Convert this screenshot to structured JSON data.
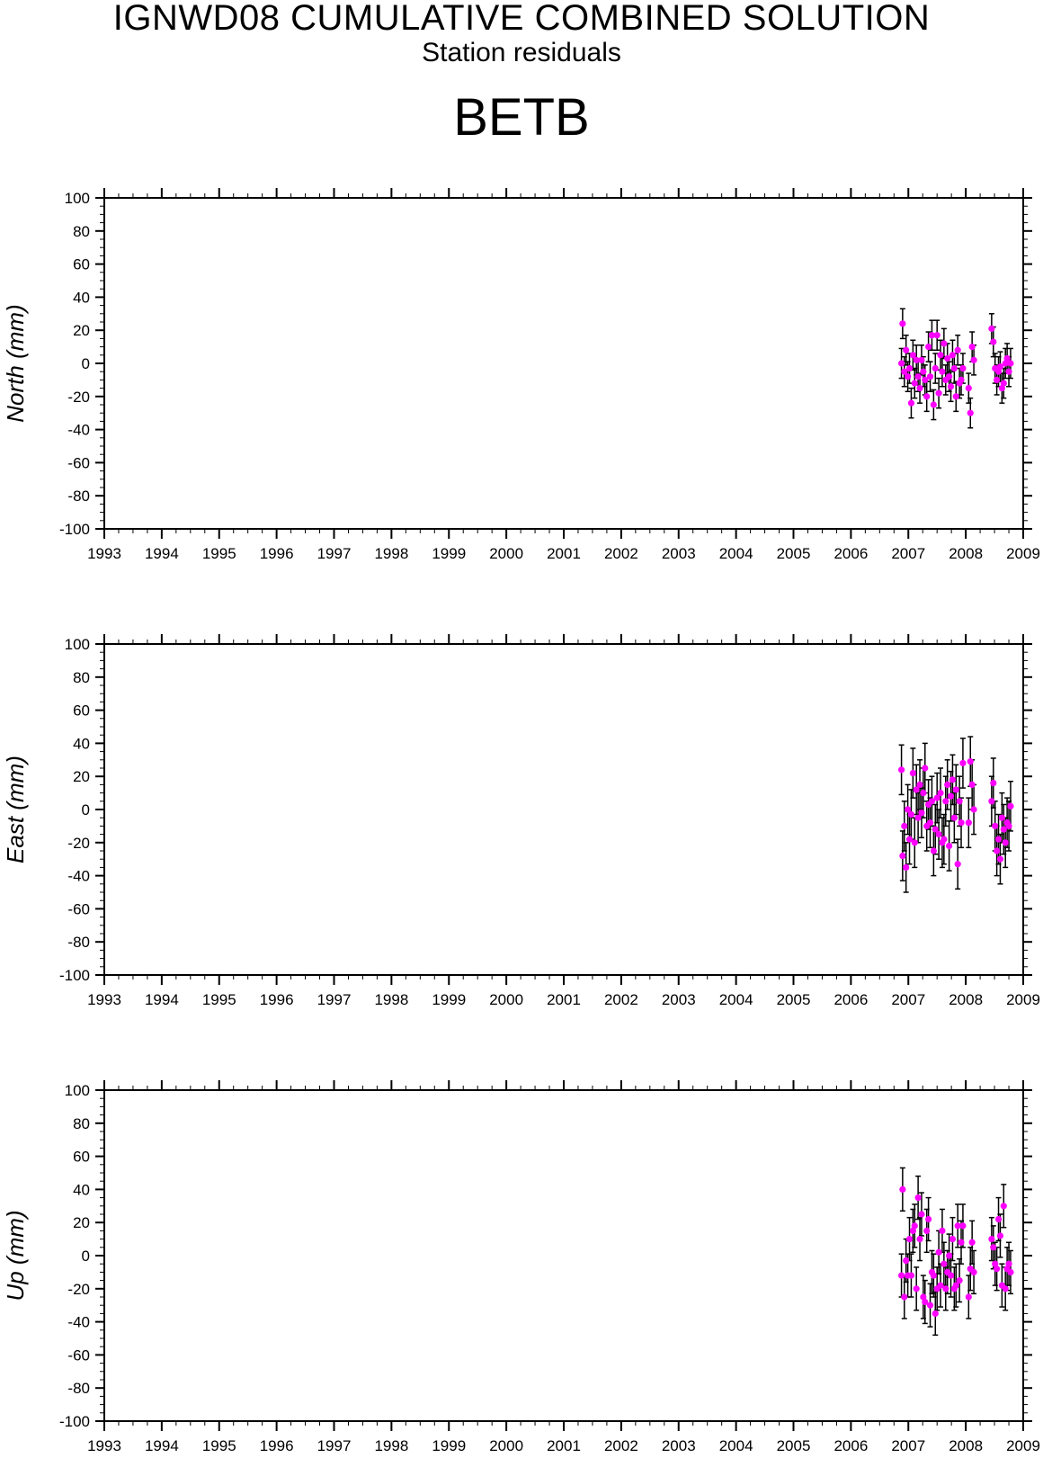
{
  "header": {
    "title": "IGNWD08 CUMULATIVE COMBINED SOLUTION",
    "subtitle": "Station residuals",
    "station": "BETB"
  },
  "colors": {
    "point": "#ff00ff",
    "errorbar": "#000000",
    "axis": "#000000"
  },
  "chart_data": [
    {
      "type": "scatter",
      "ylabel": "North (mm)",
      "xlim": [
        1993,
        2009
      ],
      "ylim": [
        -100,
        100
      ],
      "x_ticks": [
        "1993",
        "1994",
        "1995",
        "1996",
        "1997",
        "1998",
        "1999",
        "2000",
        "2001",
        "2002",
        "2003",
        "2004",
        "2005",
        "2006",
        "2007",
        "2008",
        "2009"
      ],
      "y_ticks": [
        "100",
        "80",
        "60",
        "40",
        "20",
        "0",
        "-20",
        "-40",
        "-60",
        "-80",
        "-100"
      ],
      "grid": false,
      "series": [
        {
          "x": [
            2006.88,
            2006.9,
            2006.93,
            2006.96,
            2006.99,
            2007.02,
            2007.05,
            2007.08,
            2007.11,
            2007.14,
            2007.17,
            2007.2,
            2007.23,
            2007.26,
            2007.29,
            2007.32,
            2007.35,
            2007.38,
            2007.41,
            2007.44,
            2007.47,
            2007.5,
            2007.53,
            2007.56,
            2007.59,
            2007.62,
            2007.65,
            2007.68,
            2007.71,
            2007.74,
            2007.77,
            2007.8,
            2007.83,
            2007.86,
            2007.89,
            2007.92,
            2007.95,
            2008.05,
            2008.08,
            2008.11,
            2008.14,
            2008.45,
            2008.48,
            2008.51,
            2008.54,
            2008.57,
            2008.6,
            2008.63,
            2008.66,
            2008.69,
            2008.72,
            2008.75,
            2008.78
          ],
          "y": [
            0,
            24,
            -5,
            8,
            -8,
            -3,
            -24,
            5,
            -12,
            2,
            -8,
            -15,
            2,
            -5,
            -10,
            -20,
            10,
            -8,
            17,
            -25,
            -3,
            17,
            -18,
            5,
            -5,
            12,
            -10,
            3,
            -8,
            -14,
            5,
            -3,
            -20,
            8,
            -12,
            -10,
            -3,
            -15,
            -30,
            10,
            2,
            21,
            13,
            -3,
            -10,
            -5,
            -2,
            -15,
            -12,
            0,
            3,
            -5,
            0
          ],
          "err": [
            9,
            9,
            9,
            9,
            9,
            9,
            9,
            9,
            9,
            9,
            9,
            9,
            9,
            9,
            9,
            9,
            9,
            9,
            9,
            9,
            9,
            9,
            9,
            9,
            9,
            9,
            9,
            9,
            9,
            9,
            9,
            9,
            9,
            9,
            9,
            9,
            9,
            9,
            9,
            9,
            9,
            9,
            9,
            9,
            9,
            9,
            9,
            9,
            9,
            9,
            9,
            9,
            9
          ]
        }
      ]
    },
    {
      "type": "scatter",
      "ylabel": "East (mm)",
      "xlim": [
        1993,
        2009
      ],
      "ylim": [
        -100,
        100
      ],
      "x_ticks": [
        "1993",
        "1994",
        "1995",
        "1996",
        "1997",
        "1998",
        "1999",
        "2000",
        "2001",
        "2002",
        "2003",
        "2004",
        "2005",
        "2006",
        "2007",
        "2008",
        "2009"
      ],
      "y_ticks": [
        "100",
        "80",
        "60",
        "40",
        "20",
        "0",
        "-20",
        "-40",
        "-60",
        "-80",
        "-100"
      ],
      "grid": false,
      "series": [
        {
          "x": [
            2006.88,
            2006.9,
            2006.93,
            2006.96,
            2006.99,
            2007.02,
            2007.05,
            2007.08,
            2007.11,
            2007.14,
            2007.17,
            2007.2,
            2007.23,
            2007.26,
            2007.29,
            2007.32,
            2007.35,
            2007.38,
            2007.41,
            2007.44,
            2007.47,
            2007.5,
            2007.53,
            2007.56,
            2007.59,
            2007.62,
            2007.65,
            2007.68,
            2007.71,
            2007.74,
            2007.77,
            2007.8,
            2007.83,
            2007.86,
            2007.89,
            2007.92,
            2007.95,
            2008.05,
            2008.08,
            2008.11,
            2008.14,
            2008.45,
            2008.48,
            2008.51,
            2008.54,
            2008.57,
            2008.6,
            2008.63,
            2008.66,
            2008.69,
            2008.72,
            2008.75,
            2008.78
          ],
          "y": [
            24,
            -28,
            -10,
            -35,
            0,
            -18,
            -3,
            22,
            -20,
            12,
            -5,
            15,
            -2,
            10,
            25,
            -10,
            3,
            -8,
            5,
            -25,
            -12,
            7,
            -15,
            10,
            -20,
            -18,
            5,
            15,
            -22,
            8,
            18,
            -5,
            12,
            -33,
            5,
            -8,
            28,
            -8,
            29,
            15,
            0,
            5,
            16,
            -10,
            -25,
            -18,
            -30,
            -5,
            -12,
            -20,
            -8,
            -10,
            2
          ],
          "err": [
            15,
            15,
            15,
            15,
            15,
            15,
            15,
            15,
            15,
            15,
            15,
            15,
            15,
            15,
            15,
            15,
            15,
            15,
            15,
            15,
            15,
            15,
            15,
            15,
            15,
            15,
            15,
            15,
            15,
            15,
            15,
            15,
            15,
            15,
            15,
            15,
            15,
            15,
            15,
            15,
            15,
            15,
            15,
            15,
            15,
            15,
            15,
            15,
            15,
            15,
            15,
            15,
            15
          ]
        }
      ]
    },
    {
      "type": "scatter",
      "ylabel": "Up (mm)",
      "xlim": [
        1993,
        2009
      ],
      "ylim": [
        -100,
        100
      ],
      "x_ticks": [
        "1993",
        "1994",
        "1995",
        "1996",
        "1997",
        "1998",
        "1999",
        "2000",
        "2001",
        "2002",
        "2003",
        "2004",
        "2005",
        "2006",
        "2007",
        "2008",
        "2009"
      ],
      "y_ticks": [
        "100",
        "80",
        "60",
        "40",
        "20",
        "0",
        "-20",
        "-40",
        "-60",
        "-80",
        "-100"
      ],
      "grid": false,
      "series": [
        {
          "x": [
            2006.88,
            2006.9,
            2006.93,
            2006.96,
            2006.99,
            2007.02,
            2007.05,
            2007.08,
            2007.11,
            2007.14,
            2007.17,
            2007.2,
            2007.23,
            2007.26,
            2007.29,
            2007.32,
            2007.35,
            2007.38,
            2007.41,
            2007.44,
            2007.47,
            2007.5,
            2007.53,
            2007.56,
            2007.59,
            2007.62,
            2007.65,
            2007.68,
            2007.71,
            2007.74,
            2007.77,
            2007.8,
            2007.83,
            2007.86,
            2007.89,
            2007.92,
            2007.95,
            2008.05,
            2008.08,
            2008.11,
            2008.14,
            2008.45,
            2008.48,
            2008.51,
            2008.54,
            2008.57,
            2008.6,
            2008.63,
            2008.66,
            2008.69,
            2008.72,
            2008.75,
            2008.78
          ],
          "y": [
            -12,
            40,
            -25,
            -3,
            -12,
            10,
            -12,
            15,
            18,
            -20,
            35,
            10,
            25,
            -25,
            -28,
            15,
            22,
            -30,
            -10,
            -12,
            -35,
            -20,
            2,
            -18,
            15,
            -5,
            -20,
            -10,
            0,
            -12,
            10,
            -20,
            -18,
            18,
            -15,
            8,
            18,
            -25,
            -8,
            8,
            -10,
            10,
            5,
            -5,
            -8,
            22,
            12,
            -18,
            30,
            -20,
            -8,
            -5,
            -10
          ],
          "err": [
            13,
            13,
            13,
            13,
            13,
            13,
            13,
            13,
            13,
            13,
            13,
            13,
            13,
            13,
            13,
            13,
            13,
            13,
            13,
            13,
            13,
            13,
            13,
            13,
            13,
            13,
            13,
            13,
            13,
            13,
            13,
            13,
            13,
            13,
            13,
            13,
            13,
            13,
            13,
            13,
            13,
            13,
            13,
            13,
            13,
            13,
            13,
            13,
            13,
            13,
            13,
            13,
            13
          ]
        }
      ]
    }
  ]
}
